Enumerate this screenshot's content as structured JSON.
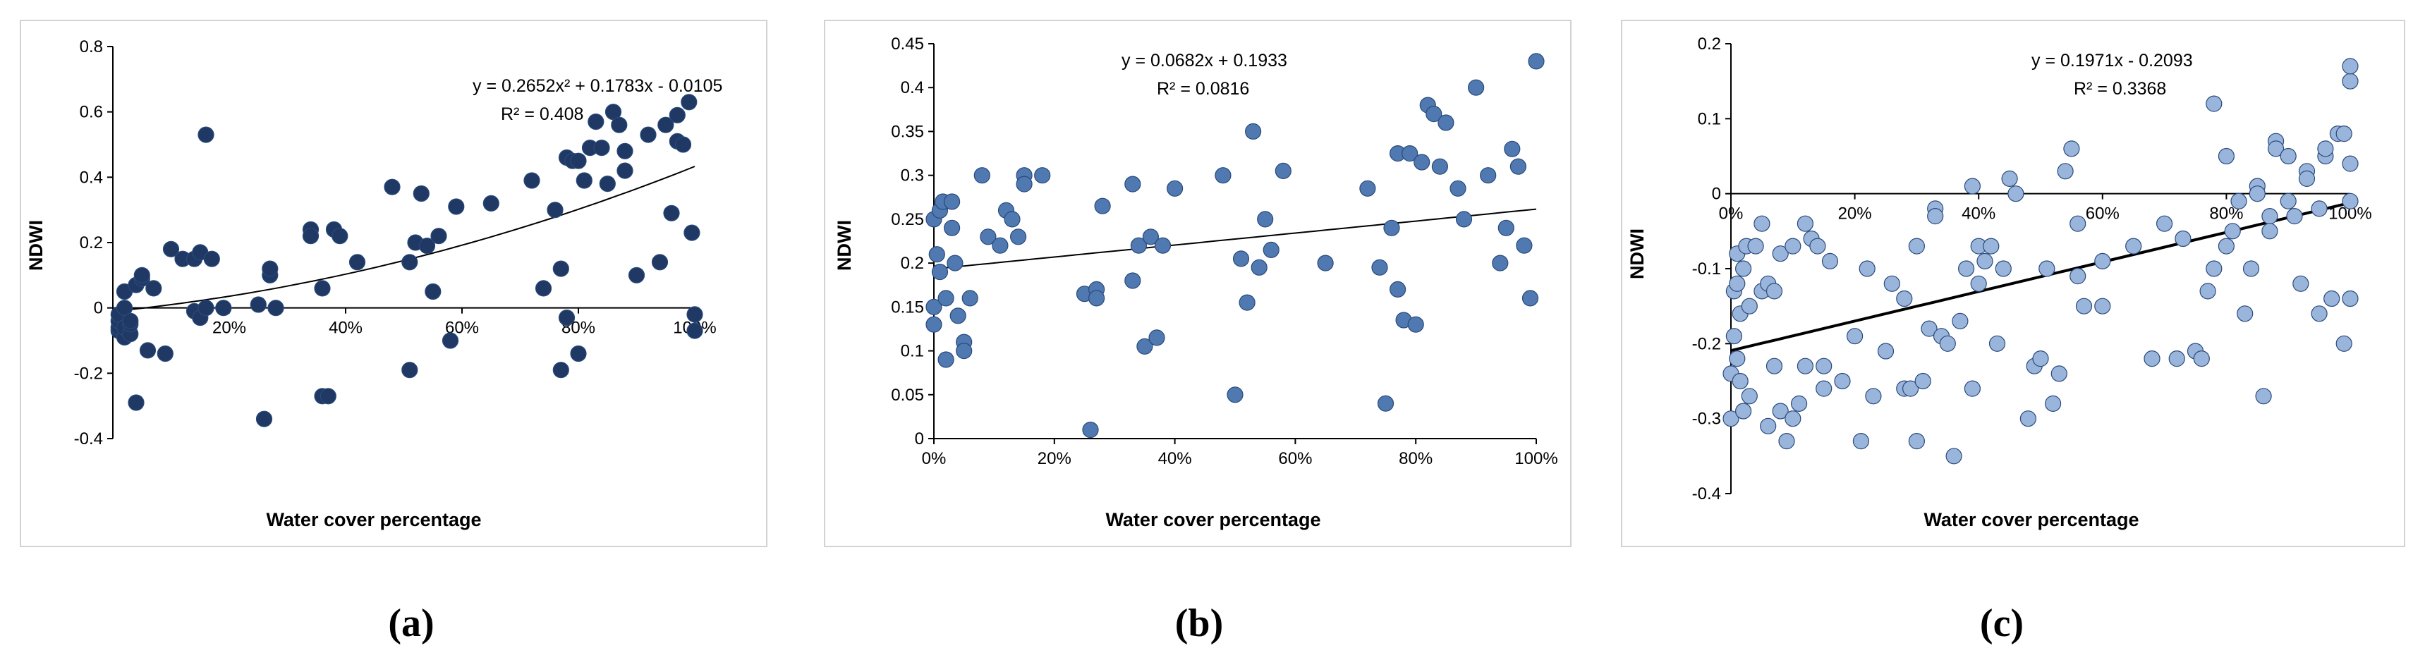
{
  "chart_data": [
    {
      "id": "a",
      "type": "scatter",
      "caption": "(a)",
      "xlabel": "Water cover percentage",
      "ylabel": "NDWI",
      "xlim": [
        0,
        1
      ],
      "ylim": [
        -0.4,
        0.8
      ],
      "yticks": [
        -0.4,
        -0.2,
        0,
        0.2,
        0.4,
        0.6,
        0.8
      ],
      "ytick_labels": [
        "-0.4",
        "-0.2",
        "0",
        "0.2",
        "0.4",
        "0.6",
        "0.8"
      ],
      "xticks": [
        0.2,
        0.4,
        0.6,
        0.8,
        1.0
      ],
      "xtick_labels": [
        "20%",
        "40%",
        "60%",
        "80%",
        "100%"
      ],
      "trendline": {
        "type": "poly2",
        "coef": [
          0.2652,
          0.1783,
          -0.0105
        ]
      },
      "equation": "y = 0.2652x² + 0.1783x - 0.0105",
      "r2": "R² = 0.408",
      "marker_color": "#1f3864",
      "x": [
        0.01,
        0.01,
        0.01,
        0.01,
        0.02,
        0.02,
        0.02,
        0.02,
        0.03,
        0.03,
        0.03,
        0.04,
        0.04,
        0.05,
        0.05,
        0.06,
        0.07,
        0.09,
        0.1,
        0.12,
        0.14,
        0.14,
        0.15,
        0.15,
        0.16,
        0.16,
        0.17,
        0.19,
        0.25,
        0.26,
        0.27,
        0.27,
        0.28,
        0.34,
        0.34,
        0.36,
        0.36,
        0.37,
        0.38,
        0.39,
        0.42,
        0.48,
        0.51,
        0.51,
        0.52,
        0.53,
        0.54,
        0.55,
        0.56,
        0.58,
        0.59,
        0.65,
        0.72,
        0.74,
        0.76,
        0.77,
        0.77,
        0.78,
        0.78,
        0.79,
        0.8,
        0.8,
        0.81,
        0.82,
        0.83,
        0.84,
        0.85,
        0.86,
        0.87,
        0.88,
        0.88,
        0.9,
        0.92,
        0.94,
        0.95,
        0.96,
        0.97,
        0.97,
        0.98,
        0.99,
        0.995,
        1.0,
        1.0
      ],
      "y": [
        -0.07,
        -0.06,
        -0.04,
        -0.02,
        -0.09,
        -0.06,
        0.0,
        0.05,
        -0.08,
        -0.05,
        -0.04,
        -0.29,
        0.07,
        0.09,
        0.1,
        -0.13,
        0.06,
        -0.14,
        0.18,
        0.15,
        0.15,
        -0.01,
        0.17,
        -0.03,
        0.53,
        0.0,
        0.15,
        0.0,
        0.01,
        -0.34,
        0.1,
        0.12,
        0.0,
        0.24,
        0.22,
        0.06,
        -0.27,
        -0.27,
        0.24,
        0.22,
        0.14,
        0.37,
        -0.19,
        0.14,
        0.2,
        0.35,
        0.19,
        0.05,
        0.22,
        -0.1,
        0.31,
        0.32,
        0.39,
        0.06,
        0.3,
        -0.19,
        0.12,
        0.46,
        -0.03,
        0.45,
        -0.14,
        0.45,
        0.39,
        0.49,
        0.57,
        0.49,
        0.38,
        0.6,
        0.56,
        0.48,
        0.42,
        0.1,
        0.53,
        0.14,
        0.56,
        0.29,
        0.51,
        0.59,
        0.5,
        0.63,
        0.23,
        -0.02,
        -0.07
      ]
    },
    {
      "id": "b",
      "type": "scatter",
      "caption": "(b)",
      "xlabel": "Water cover percentage",
      "ylabel": "NDWI",
      "xlim": [
        0,
        1
      ],
      "ylim": [
        0,
        0.45
      ],
      "yticks": [
        0,
        0.05,
        0.1,
        0.15,
        0.2,
        0.25,
        0.3,
        0.35,
        0.4,
        0.45
      ],
      "ytick_labels": [
        "0",
        "0.05",
        "0.1",
        "0.15",
        "0.2",
        "0.25",
        "0.3",
        "0.35",
        "0.4",
        "0.45"
      ],
      "xticks": [
        0,
        0.2,
        0.4,
        0.6,
        0.8,
        1.0
      ],
      "xtick_labels": [
        "0%",
        "20%",
        "40%",
        "60%",
        "80%",
        "100%"
      ],
      "trendline": {
        "type": "linear",
        "coef": [
          0.0682,
          0.1933
        ]
      },
      "equation": "y = 0.0682x + 0.1933",
      "r2": "R² = 0.0816",
      "marker_color": "#4f79b0",
      "x": [
        0.0,
        0.0,
        0.0,
        0.005,
        0.01,
        0.01,
        0.015,
        0.02,
        0.02,
        0.03,
        0.03,
        0.035,
        0.04,
        0.05,
        0.05,
        0.06,
        0.08,
        0.09,
        0.11,
        0.12,
        0.13,
        0.14,
        0.15,
        0.15,
        0.18,
        0.25,
        0.26,
        0.27,
        0.27,
        0.28,
        0.33,
        0.33,
        0.34,
        0.35,
        0.36,
        0.37,
        0.38,
        0.4,
        0.48,
        0.5,
        0.51,
        0.52,
        0.53,
        0.54,
        0.55,
        0.56,
        0.58,
        0.65,
        0.72,
        0.74,
        0.75,
        0.76,
        0.77,
        0.77,
        0.78,
        0.79,
        0.8,
        0.81,
        0.82,
        0.83,
        0.84,
        0.85,
        0.87,
        0.88,
        0.9,
        0.92,
        0.94,
        0.95,
        0.96,
        0.97,
        0.98,
        0.99,
        1.0
      ],
      "y": [
        0.13,
        0.15,
        0.25,
        0.21,
        0.19,
        0.26,
        0.27,
        0.16,
        0.09,
        0.24,
        0.27,
        0.2,
        0.14,
        0.11,
        0.1,
        0.16,
        0.3,
        0.23,
        0.22,
        0.26,
        0.25,
        0.23,
        0.3,
        0.29,
        0.3,
        0.165,
        0.01,
        0.17,
        0.16,
        0.265,
        0.18,
        0.29,
        0.22,
        0.105,
        0.23,
        0.115,
        0.22,
        0.285,
        0.3,
        0.05,
        0.205,
        0.155,
        0.35,
        0.195,
        0.25,
        0.215,
        0.305,
        0.2,
        0.285,
        0.195,
        0.04,
        0.24,
        0.325,
        0.17,
        0.135,
        0.325,
        0.13,
        0.315,
        0.38,
        0.37,
        0.31,
        0.36,
        0.285,
        0.25,
        0.4,
        0.3,
        0.2,
        0.24,
        0.33,
        0.31,
        0.22,
        0.16,
        0.43
      ]
    },
    {
      "id": "c",
      "type": "scatter",
      "caption": "(c)",
      "xlabel": "Water cover percentage",
      "ylabel": "NDWI",
      "xlim": [
        0,
        1
      ],
      "ylim": [
        -0.4,
        0.2
      ],
      "yticks": [
        -0.4,
        -0.3,
        -0.2,
        -0.1,
        0,
        0.1,
        0.2
      ],
      "ytick_labels": [
        "-0.4",
        "-0.3",
        "-0.2",
        "-0.1",
        "0",
        "0.1",
        "0.2"
      ],
      "xticks": [
        0,
        0.2,
        0.4,
        0.6,
        0.8,
        1.0
      ],
      "xtick_labels": [
        "0%",
        "20%",
        "40%",
        "60%",
        "80%",
        "100%"
      ],
      "trendline": {
        "type": "linear",
        "coef": [
          0.1971,
          -0.2093
        ]
      },
      "equation": "y = 0.1971x - 0.2093",
      "r2": "R² = 0.3368",
      "marker_color": "#9ab5dc",
      "x": [
        0.0,
        0.0,
        0.005,
        0.005,
        0.01,
        0.01,
        0.01,
        0.015,
        0.015,
        0.02,
        0.02,
        0.025,
        0.03,
        0.03,
        0.04,
        0.05,
        0.05,
        0.06,
        0.06,
        0.07,
        0.07,
        0.08,
        0.08,
        0.09,
        0.1,
        0.1,
        0.11,
        0.12,
        0.12,
        0.13,
        0.14,
        0.15,
        0.15,
        0.16,
        0.18,
        0.2,
        0.21,
        0.22,
        0.23,
        0.25,
        0.26,
        0.28,
        0.28,
        0.29,
        0.3,
        0.3,
        0.31,
        0.32,
        0.33,
        0.33,
        0.34,
        0.35,
        0.36,
        0.37,
        0.38,
        0.39,
        0.39,
        0.4,
        0.4,
        0.41,
        0.42,
        0.43,
        0.44,
        0.45,
        0.46,
        0.48,
        0.49,
        0.5,
        0.51,
        0.52,
        0.53,
        0.54,
        0.55,
        0.56,
        0.56,
        0.57,
        0.6,
        0.6,
        0.65,
        0.68,
        0.7,
        0.72,
        0.73,
        0.75,
        0.76,
        0.77,
        0.78,
        0.78,
        0.8,
        0.8,
        0.81,
        0.82,
        0.83,
        0.84,
        0.85,
        0.85,
        0.86,
        0.87,
        0.87,
        0.88,
        0.88,
        0.9,
        0.9,
        0.91,
        0.92,
        0.93,
        0.93,
        0.95,
        0.95,
        0.96,
        0.96,
        0.97,
        0.98,
        0.99,
        0.99,
        1.0,
        1.0,
        1.0,
        1.0,
        1.0
      ],
      "y": [
        -0.3,
        -0.24,
        -0.19,
        -0.13,
        -0.22,
        -0.08,
        -0.12,
        -0.25,
        -0.16,
        -0.29,
        -0.1,
        -0.07,
        -0.27,
        -0.15,
        -0.07,
        -0.13,
        -0.04,
        -0.31,
        -0.12,
        -0.23,
        -0.13,
        -0.08,
        -0.29,
        -0.33,
        -0.3,
        -0.07,
        -0.28,
        -0.23,
        -0.04,
        -0.06,
        -0.07,
        -0.26,
        -0.23,
        -0.09,
        -0.25,
        -0.19,
        -0.33,
        -0.1,
        -0.27,
        -0.21,
        -0.12,
        -0.14,
        -0.26,
        -0.26,
        -0.07,
        -0.33,
        -0.25,
        -0.18,
        -0.02,
        -0.03,
        -0.19,
        -0.2,
        -0.35,
        -0.17,
        -0.1,
        -0.26,
        0.01,
        -0.07,
        -0.12,
        -0.09,
        -0.07,
        -0.2,
        -0.1,
        0.02,
        0.0,
        -0.3,
        -0.23,
        -0.22,
        -0.1,
        -0.28,
        -0.24,
        0.03,
        0.06,
        -0.04,
        -0.11,
        -0.15,
        -0.15,
        -0.09,
        -0.07,
        -0.22,
        -0.04,
        -0.22,
        -0.06,
        -0.21,
        -0.22,
        -0.13,
        0.12,
        -0.1,
        0.05,
        -0.07,
        -0.05,
        -0.01,
        -0.16,
        -0.1,
        0.01,
        0.0,
        -0.27,
        -0.03,
        -0.05,
        0.07,
        0.06,
        -0.01,
        0.05,
        -0.03,
        -0.12,
        0.03,
        0.02,
        -0.02,
        -0.16,
        0.05,
        0.06,
        -0.14,
        0.08,
        -0.2,
        0.08,
        -0.01,
        0.04,
        -0.14,
        0.15,
        0.17
      ]
    }
  ]
}
